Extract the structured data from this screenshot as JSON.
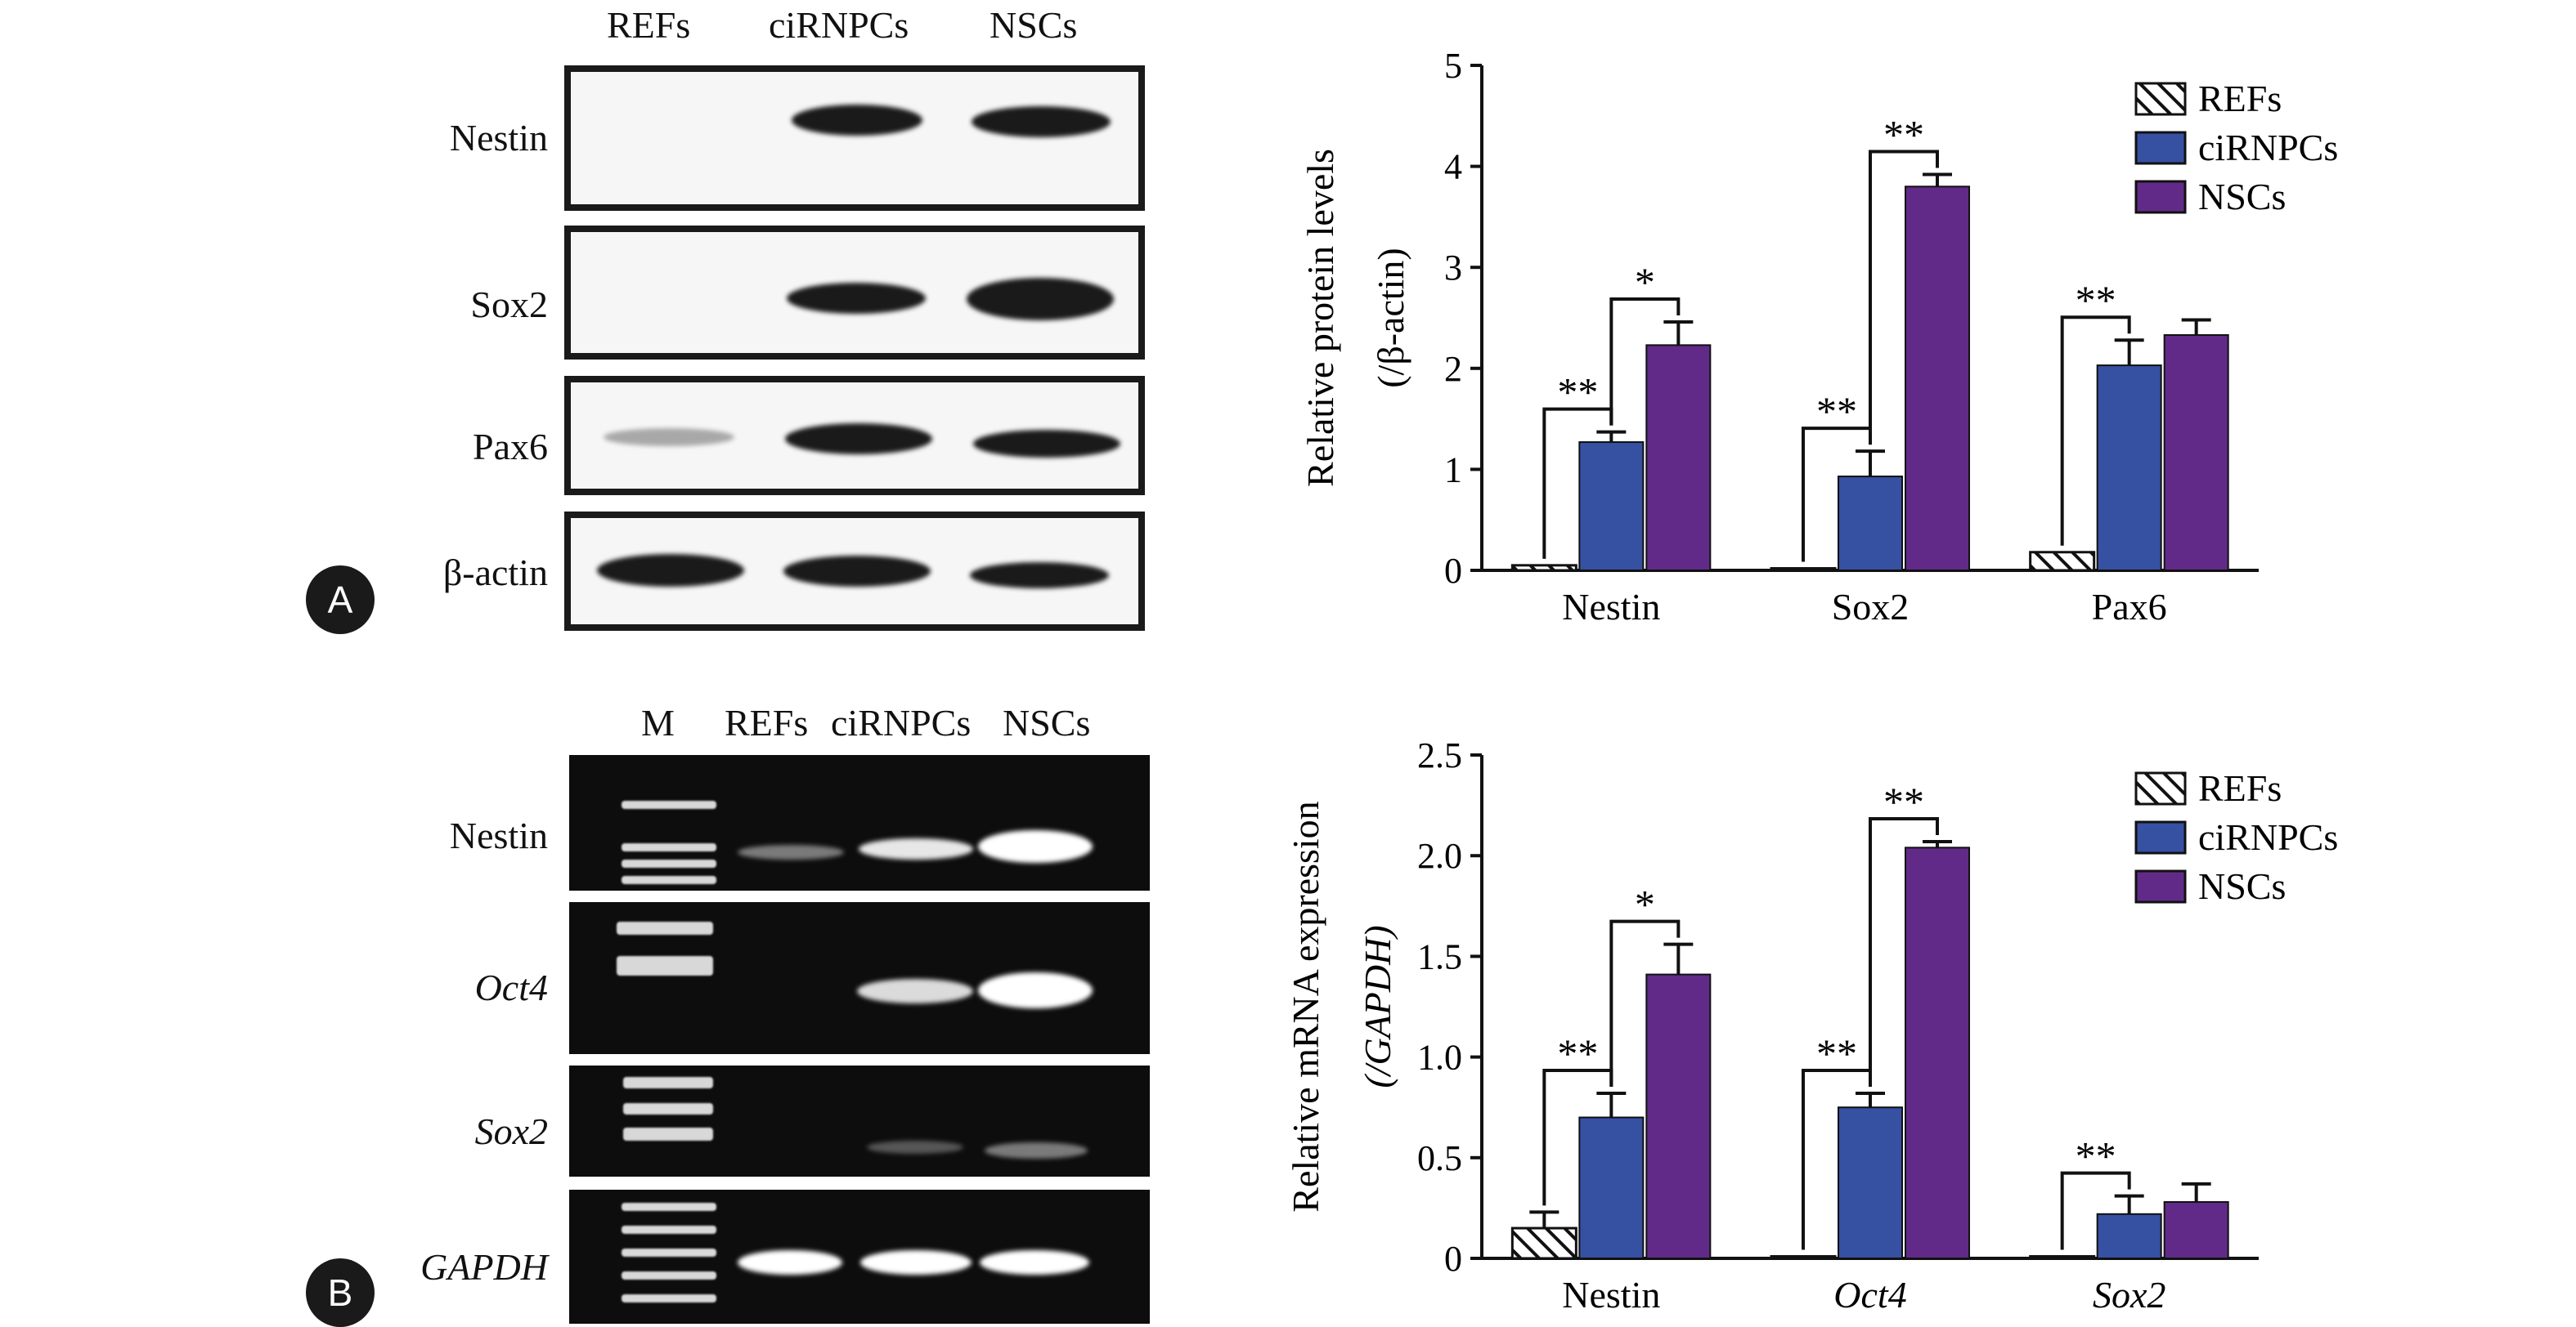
{
  "panelA": {
    "badge": "A",
    "lanes": [
      "REFs",
      "ciRNPCs",
      "NSCs"
    ],
    "rows": [
      "Nestin",
      "Sox2",
      "Pax6",
      "β-actin"
    ]
  },
  "panelB": {
    "badge": "B",
    "lanes": [
      "M",
      "REFs",
      "ciRNPCs",
      "NSCs"
    ],
    "rows": [
      "Nestin",
      "Oct4",
      "Sox2",
      "GAPDH"
    ]
  },
  "chart_data": [
    {
      "type": "bar",
      "title": "",
      "xlabel": "",
      "ylabel": "Relative protein levels",
      "ylabel2": "(/β-actin)",
      "ylim": [
        0,
        5
      ],
      "yticks": [
        "0",
        "1",
        "2",
        "3",
        "4",
        "5"
      ],
      "categories": [
        "Nestin",
        "Sox2",
        "Pax6"
      ],
      "italic_categories": [
        false,
        false,
        false
      ],
      "legend_position": "top-right",
      "series": [
        {
          "name": "REFs",
          "values": [
            0.05,
            0.02,
            0.18
          ],
          "errors": [
            0,
            0,
            0
          ],
          "color": "#ffffff",
          "pattern": "hatch"
        },
        {
          "name": "ciRNPCs",
          "values": [
            1.27,
            0.93,
            2.03
          ],
          "errors": [
            0.1,
            0.25,
            0.25
          ],
          "color": "#3650a2"
        },
        {
          "name": "NSCs",
          "values": [
            2.23,
            3.8,
            2.33
          ],
          "errors": [
            0.23,
            0.12,
            0.15
          ],
          "color": "#622a88"
        }
      ],
      "significance": [
        {
          "category": 0,
          "pair": [
            0,
            1
          ],
          "label": "**"
        },
        {
          "category": 0,
          "pair": [
            1,
            2
          ],
          "label": "*"
        },
        {
          "category": 1,
          "pair": [
            0,
            1
          ],
          "label": "**"
        },
        {
          "category": 1,
          "pair": [
            1,
            2
          ],
          "label": "**"
        },
        {
          "category": 2,
          "pair": [
            0,
            1
          ],
          "label": "**"
        }
      ]
    },
    {
      "type": "bar",
      "title": "",
      "xlabel": "",
      "ylabel": "Relative mRNA expression",
      "ylabel2": "(/GAPDH)",
      "ylim": [
        0,
        2.5
      ],
      "yticks": [
        "0",
        "0.5",
        "1.0",
        "1.5",
        "2.0",
        "2.5"
      ],
      "categories": [
        "Nestin",
        "Oct4",
        "Sox2"
      ],
      "italic_categories": [
        false,
        true,
        true
      ],
      "legend_position": "top-right",
      "series": [
        {
          "name": "REFs",
          "values": [
            0.15,
            0.01,
            0.01
          ],
          "errors": [
            0.08,
            0,
            0
          ],
          "color": "#ffffff",
          "pattern": "hatch"
        },
        {
          "name": "ciRNPCs",
          "values": [
            0.7,
            0.75,
            0.22
          ],
          "errors": [
            0.12,
            0.07,
            0.09
          ],
          "color": "#3650a2"
        },
        {
          "name": "NSCs",
          "values": [
            1.41,
            2.04,
            0.28
          ],
          "errors": [
            0.15,
            0.03,
            0.09
          ],
          "color": "#622a88"
        }
      ],
      "significance": [
        {
          "category": 0,
          "pair": [
            0,
            1
          ],
          "label": "**"
        },
        {
          "category": 0,
          "pair": [
            1,
            2
          ],
          "label": "*"
        },
        {
          "category": 1,
          "pair": [
            0,
            1
          ],
          "label": "**"
        },
        {
          "category": 1,
          "pair": [
            1,
            2
          ],
          "label": "**"
        },
        {
          "category": 2,
          "pair": [
            0,
            1
          ],
          "label": "**"
        }
      ]
    }
  ]
}
